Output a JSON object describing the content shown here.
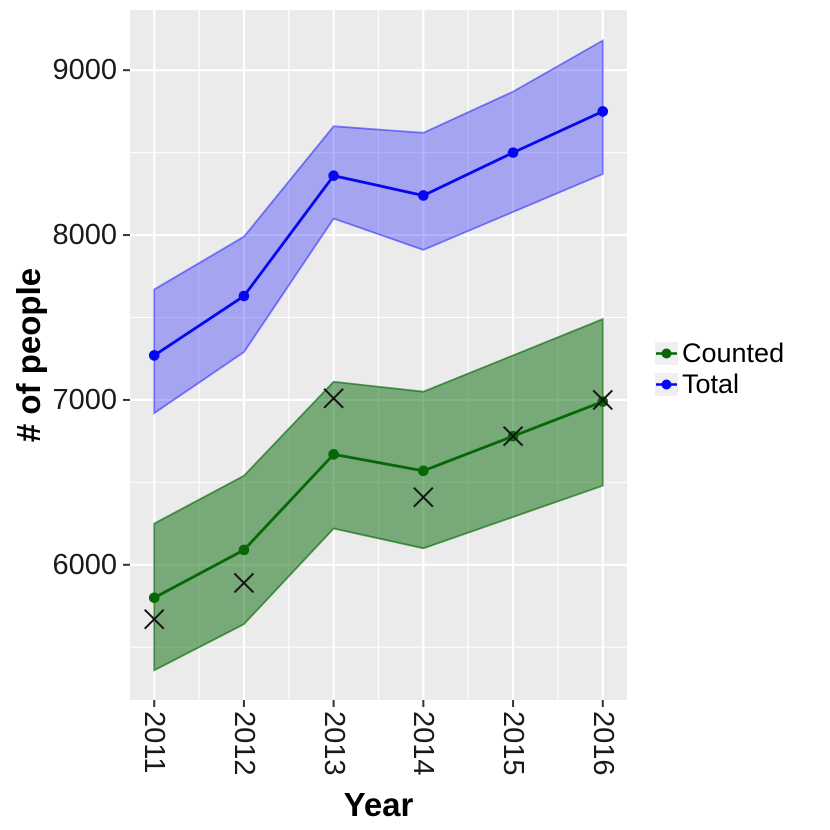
{
  "figure": {
    "background": "#ffffff",
    "panel_background": "#ebebeb",
    "grid_color": "#ffffff",
    "tick_mark_color": "#333333",
    "axis_text_color": "#1a1a1a"
  },
  "chart_data": {
    "type": "line",
    "title": "",
    "xlabel": "Year",
    "ylabel": "# of people",
    "legend_position": "right",
    "grid": "on",
    "x": [
      2011,
      2012,
      2013,
      2014,
      2015,
      2016
    ],
    "x_tick_labels": [
      "2011",
      "2012",
      "2013",
      "2014",
      "2015",
      "2016"
    ],
    "y_major_ticks": [
      6000,
      7000,
      8000,
      9000
    ],
    "y_tick_labels": [
      "6000",
      "7000",
      "8000",
      "9000"
    ],
    "y_minor_gridlines": [
      5500,
      6500,
      7500,
      8500
    ],
    "x_minor_gridlines": [
      2011.5,
      2012.5,
      2013.5,
      2014.5,
      2015.5
    ],
    "x_range": [
      2010.73,
      2016.27
    ],
    "y_range": [
      5180,
      9365
    ],
    "series": [
      {
        "name": "Counted",
        "color": "#076607",
        "ribbon_fill": "rgba(0,100,0,0.49)",
        "ribbon_edge": "rgba(0,100,0,0.62)",
        "values": [
          5800,
          6090,
          6670,
          6570,
          6780,
          6990
        ],
        "ribbon_upper": [
          6250,
          6540,
          7110,
          7050,
          7270,
          7490
        ],
        "ribbon_lower": [
          5360,
          5640,
          6220,
          6100,
          6290,
          6480
        ]
      },
      {
        "name": "Total",
        "color": "#0606f0",
        "ribbon_fill": "rgba(0,0,255,0.30)",
        "ribbon_edge": "rgba(0,0,255,0.45)",
        "values": [
          7270,
          7630,
          8360,
          8240,
          8500,
          8750
        ],
        "ribbon_upper": [
          7670,
          7990,
          8660,
          8620,
          8870,
          9180
        ],
        "ribbon_lower": [
          6920,
          7290,
          8100,
          7910,
          8140,
          8370
        ]
      }
    ],
    "scatter": {
      "name": "observed-x-markers",
      "marker": "x",
      "color": "#141414",
      "x": [
        2011,
        2012,
        2013,
        2014,
        2015,
        2016
      ],
      "y": [
        5670,
        5890,
        7010,
        6410,
        6780,
        7000
      ]
    }
  }
}
